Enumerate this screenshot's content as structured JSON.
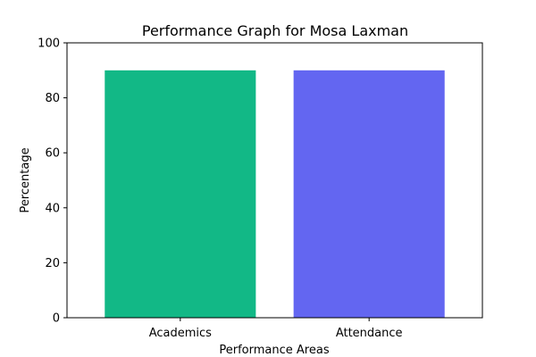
{
  "chart_data": {
    "type": "bar",
    "title": "Performance Graph for Mosa Laxman",
    "xlabel": "Performance Areas",
    "ylabel": "Percentage",
    "categories": [
      "Academics",
      "Attendance"
    ],
    "values": [
      90,
      90
    ],
    "colors": [
      "#12b886",
      "#6366f1"
    ],
    "ylim": [
      0,
      100
    ],
    "yticks": [
      0,
      20,
      40,
      60,
      80,
      100
    ],
    "grid": false,
    "legend": "none"
  }
}
